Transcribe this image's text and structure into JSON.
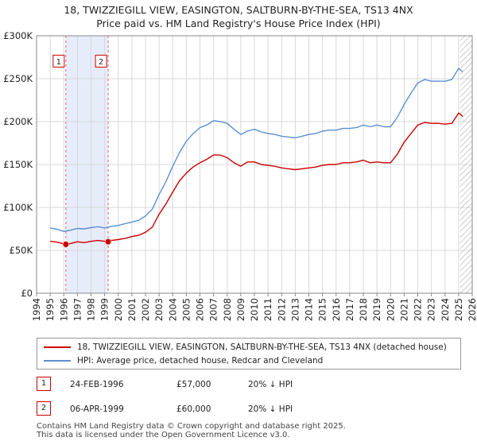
{
  "chart_data": {
    "type": "line",
    "title": "18, TWIZZIEGILL VIEW, EASINGTON, SALTBURN-BY-THE-SEA, TS13 4NX",
    "subtitle": "Price paid vs. HM Land Registry's House Price Index (HPI)",
    "xlim": [
      1994,
      2026
    ],
    "ylim": [
      0,
      300000
    ],
    "x_ticks": [
      "1994",
      "1995",
      "1996",
      "1997",
      "1998",
      "1999",
      "2000",
      "2001",
      "2002",
      "2003",
      "2004",
      "2005",
      "2006",
      "2007",
      "2008",
      "2009",
      "2010",
      "2011",
      "2012",
      "2013",
      "2014",
      "2015",
      "2016",
      "2017",
      "2018",
      "2019",
      "2020",
      "2021",
      "2022",
      "2023",
      "2024",
      "2025",
      "2026"
    ],
    "y_ticks": [
      {
        "value": 0,
        "label": "£0"
      },
      {
        "value": 50000,
        "label": "£50K"
      },
      {
        "value": 100000,
        "label": "£100K"
      },
      {
        "value": 150000,
        "label": "£150K"
      },
      {
        "value": 200000,
        "label": "£200K"
      },
      {
        "value": 250000,
        "label": "£250K"
      },
      {
        "value": 300000,
        "label": "£300K"
      }
    ],
    "grid": true,
    "shaded_span": [
      1996.15,
      1999.26
    ],
    "series": [
      {
        "name": "18, TWIZZIEGILL VIEW, EASINGTON, SALTBURN-BY-THE-SEA, TS13 4NX (detached house)",
        "color": "#cc0000",
        "x": [
          1995.0,
          1995.5,
          1996.15,
          1996.5,
          1997.0,
          1997.5,
          1998.0,
          1998.5,
          1999.26,
          1999.5,
          2000.0,
          2000.5,
          2001.0,
          2001.5,
          2002.0,
          2002.5,
          2003.0,
          2003.5,
          2004.0,
          2004.5,
          2005.0,
          2005.5,
          2006.0,
          2006.5,
          2007.0,
          2007.5,
          2008.0,
          2008.5,
          2009.0,
          2009.5,
          2010.0,
          2010.5,
          2011.0,
          2011.5,
          2012.0,
          2012.5,
          2013.0,
          2013.5,
          2014.0,
          2014.5,
          2015.0,
          2015.5,
          2016.0,
          2016.5,
          2017.0,
          2017.5,
          2018.0,
          2018.5,
          2019.0,
          2019.5,
          2020.0,
          2020.5,
          2021.0,
          2021.5,
          2022.0,
          2022.5,
          2023.0,
          2023.5,
          2024.0,
          2024.5,
          2025.0,
          2025.3
        ],
        "values": [
          60500,
          59500,
          57000,
          58000,
          60000,
          59000,
          60500,
          61500,
          60000,
          61500,
          62500,
          64000,
          66000,
          67500,
          71000,
          77000,
          92000,
          104000,
          118000,
          131000,
          140000,
          147000,
          152000,
          156000,
          161000,
          161000,
          158000,
          152000,
          148000,
          153000,
          153000,
          150000,
          149000,
          148000,
          146000,
          145000,
          144000,
          145000,
          146000,
          147000,
          149000,
          150000,
          150000,
          152000,
          152000,
          153000,
          155000,
          152000,
          153000,
          152000,
          152000,
          162000,
          176000,
          186000,
          196000,
          199000,
          198000,
          198000,
          197000,
          198000,
          210000,
          206000
        ]
      },
      {
        "name": "HPI: Average price, detached house, Redcar and Cleveland",
        "color": "#5b8fd0",
        "x": [
          1995.0,
          1995.5,
          1996.0,
          1996.5,
          1997.0,
          1997.5,
          1998.0,
          1998.5,
          1999.0,
          1999.5,
          2000.0,
          2000.5,
          2001.0,
          2001.5,
          2002.0,
          2002.5,
          2003.0,
          2003.5,
          2004.0,
          2004.5,
          2005.0,
          2005.5,
          2006.0,
          2006.5,
          2007.0,
          2007.5,
          2008.0,
          2008.5,
          2009.0,
          2009.5,
          2010.0,
          2010.5,
          2011.0,
          2011.5,
          2012.0,
          2012.5,
          2013.0,
          2013.5,
          2014.0,
          2014.5,
          2015.0,
          2015.5,
          2016.0,
          2016.5,
          2017.0,
          2017.5,
          2018.0,
          2018.5,
          2019.0,
          2019.5,
          2020.0,
          2020.5,
          2021.0,
          2021.5,
          2022.0,
          2022.5,
          2023.0,
          2023.5,
          2024.0,
          2024.5,
          2025.0,
          2025.3
        ],
        "values": [
          76000,
          74500,
          72000,
          73500,
          75500,
          75000,
          76500,
          77500,
          76000,
          78000,
          79000,
          81000,
          83000,
          85000,
          90000,
          98000,
          115000,
          130000,
          148000,
          164000,
          177000,
          186000,
          193000,
          196000,
          201000,
          200000,
          198000,
          191000,
          185000,
          189000,
          191000,
          188000,
          186000,
          185000,
          183000,
          182000,
          181000,
          183000,
          185000,
          186000,
          189000,
          190000,
          190000,
          192000,
          192000,
          193000,
          196000,
          194000,
          196000,
          194000,
          194000,
          205000,
          220000,
          233000,
          245000,
          249000,
          247000,
          247000,
          247000,
          249000,
          262000,
          258000
        ]
      }
    ],
    "sales": [
      {
        "label": "1",
        "date": "24-FEB-1996",
        "year": 1996.15,
        "price": 57000
      },
      {
        "label": "2",
        "date": "06-APR-1999",
        "year": 1999.26,
        "price": 60000
      }
    ],
    "annotation_box_value": 270000
  },
  "legend": {
    "property_label": "18, TWIZZIEGILL VIEW, EASINGTON, SALTBURN-BY-THE-SEA, TS13 4NX (detached house)",
    "hpi_label": "HPI: Average price, detached house, Redcar and Cleveland"
  },
  "sales_table": [
    {
      "num": "1",
      "date": "24-FEB-1996",
      "price": "£57,000",
      "hpi": "20% ↓ HPI"
    },
    {
      "num": "2",
      "date": "06-APR-1999",
      "price": "£60,000",
      "hpi": "20% ↓ HPI"
    }
  ],
  "footer": {
    "line1": "Contains HM Land Registry data © Crown copyright and database right 2025.",
    "line2": "This data is licensed under the Open Government Licence v3.0."
  },
  "colors": {
    "property": "#cc0000",
    "hpi": "#5b8fd0",
    "shade": "#e6ecfa",
    "grid": "#d8d8d8"
  }
}
